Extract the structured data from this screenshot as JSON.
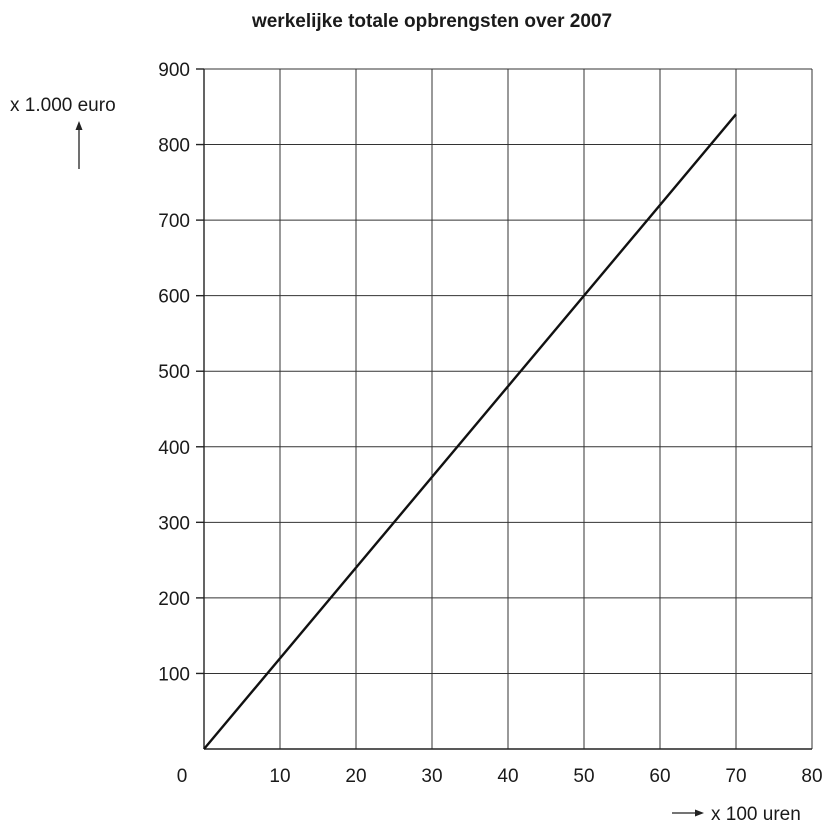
{
  "chart_data": {
    "type": "line",
    "title": "werkelijke totale opbrengsten over 2007",
    "xlabel": "x 100 uren",
    "ylabel": "x 1.000 euro",
    "xlim": [
      0,
      80
    ],
    "ylim": [
      0,
      900
    ],
    "x_ticks": [
      0,
      10,
      20,
      30,
      40,
      50,
      60,
      70,
      80
    ],
    "y_ticks": [
      100,
      200,
      300,
      400,
      500,
      600,
      700,
      800,
      900
    ],
    "grid": true,
    "series": [
      {
        "x": [
          0,
          70
        ],
        "y": [
          0,
          840
        ]
      }
    ]
  }
}
